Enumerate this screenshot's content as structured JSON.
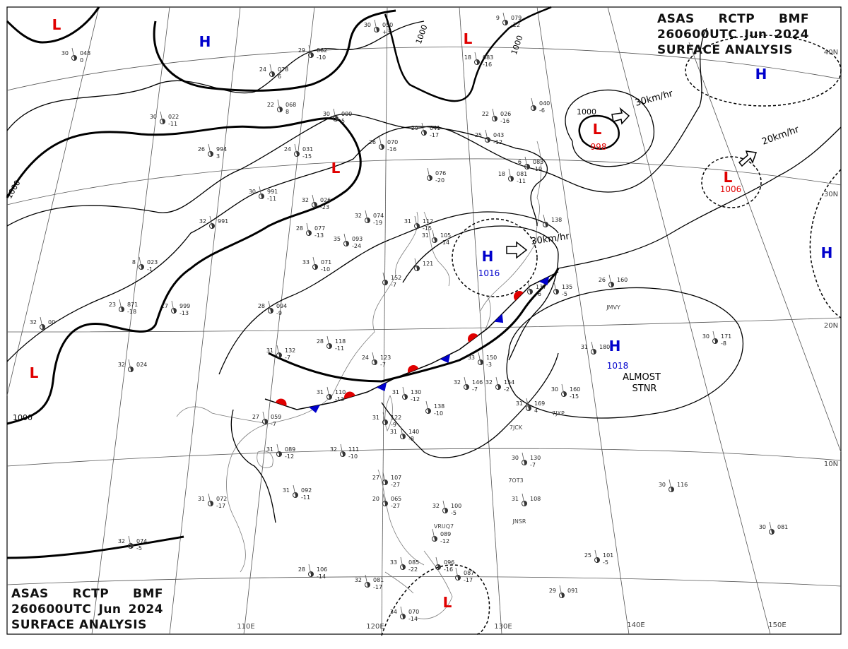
{
  "header": {
    "agency": "ASAS",
    "station": "RCTP",
    "office": "BMF",
    "valid_time": "260600UTC",
    "month": "Jun",
    "year": "2024",
    "product": "SURFACE ANALYSIS"
  },
  "longitude_labels": [
    "110E",
    "120E",
    "130E",
    "140E",
    "150E"
  ],
  "latitude_labels": [
    "40N",
    "30N",
    "20N",
    "10N"
  ],
  "pressure_systems": [
    {
      "type": "L",
      "color": "#e00000"
    },
    {
      "type": "H",
      "color": "#0000cc"
    },
    {
      "type": "L",
      "color": "#e00000"
    },
    {
      "type": "L",
      "color": "#e00000"
    },
    {
      "type": "L",
      "color": "#e00000",
      "value": "998"
    },
    {
      "type": "H",
      "color": "#0000cc"
    },
    {
      "type": "L",
      "color": "#e00000",
      "value": "1006"
    },
    {
      "type": "H",
      "color": "#0000cc",
      "value": "1016"
    },
    {
      "type": "H",
      "color": "#0000cc",
      "value": "1018"
    },
    {
      "type": "H",
      "color": "#0000cc"
    },
    {
      "type": "L",
      "color": "#e00000"
    },
    {
      "type": "L",
      "color": "#e00000"
    }
  ],
  "isobar_labels": [
    "1000",
    "1000",
    "1000",
    "1000",
    "1000"
  ],
  "motion_labels": [
    "30km/hr",
    "20km/hr",
    "30km/hr"
  ],
  "annotations": [
    "ALMOST",
    "STNR"
  ],
  "stations": [
    {
      "t": "30",
      "p": "048",
      "d": "0"
    },
    {
      "t": "29",
      "p": "062",
      "d": "-10"
    },
    {
      "t": "24",
      "p": "078",
      "d": "6"
    },
    {
      "t": "22",
      "p": "068",
      "d": "8"
    },
    {
      "t": "30",
      "p": "050",
      "d": "+3"
    },
    {
      "t": "18",
      "p": "083",
      "d": "-16"
    },
    {
      "t": "9",
      "p": "079",
      "d": "-22"
    },
    {
      "t": "30",
      "p": "022",
      "d": "-11"
    },
    {
      "t": "30",
      "p": "000",
      "d": "5"
    },
    {
      "t": "26",
      "p": "070",
      "d": "-16"
    },
    {
      "t": "29",
      "p": "041",
      "d": "-17"
    },
    {
      "t": "22",
      "p": "026",
      "d": "-16"
    },
    {
      "t": "25",
      "p": "043",
      "d": "-12"
    },
    {
      "t": "26",
      "p": "994",
      "d": "3"
    },
    {
      "t": "24",
      "p": "031",
      "d": "-15"
    },
    {
      "t": "30",
      "p": "991",
      "d": "-11"
    },
    {
      "t": "32",
      "p": "026",
      "d": "-23"
    },
    {
      "t": "28",
      "p": "077",
      "d": "-13"
    },
    {
      "t": "32",
      "p": "991",
      "d": ""
    },
    {
      "t": "32",
      "p": "074",
      "d": "-19"
    },
    {
      "t": "31",
      "p": "112",
      "d": "-15"
    },
    {
      "t": "35",
      "p": "093",
      "d": "-24"
    },
    {
      "t": "33",
      "p": "071",
      "d": "-10"
    },
    {
      "t": "8",
      "p": "023",
      "d": "-1"
    },
    {
      "t": "23",
      "p": "871",
      "d": "-18"
    },
    {
      "t": "17",
      "p": "999",
      "d": "-13"
    },
    {
      "t": "28",
      "p": "094",
      "d": "-9"
    },
    {
      "t": "32",
      "p": "00",
      "d": ""
    },
    {
      "t": "32",
      "p": "024",
      "d": ""
    },
    {
      "t": "28",
      "p": "118",
      "d": "-11"
    },
    {
      "t": "31",
      "p": "132",
      "d": "-7"
    },
    {
      "t": "24",
      "p": "123",
      "d": "-7"
    },
    {
      "t": "33",
      "p": "150",
      "d": "-3"
    },
    {
      "t": "32",
      "p": "146",
      "d": "-7"
    },
    {
      "t": "32",
      "p": "154",
      "d": "-2"
    },
    {
      "t": "31",
      "p": "110",
      "d": "-13"
    },
    {
      "t": "31",
      "p": "130",
      "d": "-12"
    },
    {
      "t": "",
      "p": "138",
      "d": "-10"
    },
    {
      "t": "31",
      "p": "122",
      "d": "-9"
    },
    {
      "t": "31",
      "p": "140",
      "d": "-8"
    },
    {
      "t": "27",
      "p": "059",
      "d": "-7"
    },
    {
      "t": "31",
      "p": "089",
      "d": "-12"
    },
    {
      "t": "32",
      "p": "111",
      "d": "-10"
    },
    {
      "t": "31",
      "p": "072",
      "d": "-17"
    },
    {
      "t": "31",
      "p": "092",
      "d": "-11"
    },
    {
      "t": "32",
      "p": "074",
      "d": "-5"
    },
    {
      "t": "28",
      "p": "106",
      "d": "-14"
    },
    {
      "t": "32",
      "p": "081",
      "d": "-17"
    },
    {
      "t": "33",
      "p": "085",
      "d": "-22"
    },
    {
      "t": "34",
      "p": "070",
      "d": "-14"
    },
    {
      "t": "27",
      "p": "107",
      "d": "-27"
    },
    {
      "t": "20",
      "p": "065",
      "d": "-27"
    },
    {
      "t": "32",
      "p": "100",
      "d": "-5"
    },
    {
      "t": "",
      "p": "089",
      "d": "-12"
    },
    {
      "t": "",
      "p": "096",
      "d": "-16"
    },
    {
      "t": "",
      "p": "087",
      "d": "-17"
    },
    {
      "t": "26",
      "p": "160",
      "d": ""
    },
    {
      "t": "31",
      "p": "180",
      "d": ""
    },
    {
      "t": "30",
      "p": "171",
      "d": "-8"
    },
    {
      "t": "30",
      "p": "160",
      "d": "-15"
    },
    {
      "t": "31",
      "p": "169",
      "d": "4"
    },
    {
      "t": "30",
      "p": "130",
      "d": "-7"
    },
    {
      "t": "31",
      "p": "108",
      "d": ""
    },
    {
      "t": "30",
      "p": "116",
      "d": ""
    },
    {
      "t": "30",
      "p": "081",
      "d": ""
    },
    {
      "t": "25",
      "p": "101",
      "d": "-5"
    },
    {
      "t": "29",
      "p": "091",
      "d": ""
    },
    {
      "t": "31",
      "p": "105",
      "d": "-14"
    },
    {
      "t": "",
      "p": "152",
      "d": "-7"
    },
    {
      "t": "",
      "p": "121",
      "d": ""
    },
    {
      "t": "",
      "p": "076",
      "d": "-20"
    },
    {
      "t": "18",
      "p": "081",
      "d": "-11"
    },
    {
      "t": "6",
      "p": "083",
      "d": "-19"
    },
    {
      "t": "",
      "p": "040",
      "d": "-6"
    },
    {
      "t": "",
      "p": "138",
      "d": ""
    },
    {
      "t": "",
      "p": "137",
      "d": "-6"
    },
    {
      "t": "",
      "p": "135",
      "d": "-5"
    }
  ],
  "ship_ids": [
    "JMVY",
    "7JCK",
    "7JXP",
    "7OT3",
    "JNSR",
    "VRUQ7"
  ]
}
